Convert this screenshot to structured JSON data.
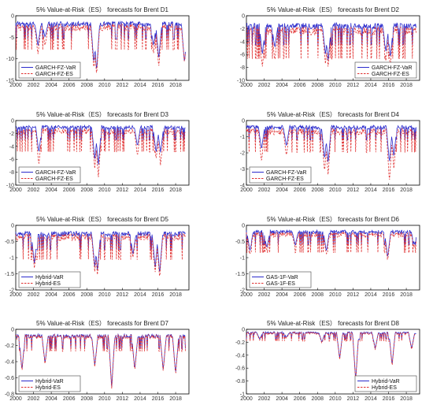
{
  "figure": {
    "panel_titles_note": "",
    "colors": {
      "var": "#2b2bcc",
      "es": "#e03030",
      "axis": "#000000",
      "tick_text": "#333333"
    }
  },
  "chart_data": [
    {
      "type": "line",
      "title": "5% Value-at-Risk（ES） forecasts for Brent D1",
      "xlabel": "",
      "ylabel": "",
      "xlim": [
        2000,
        2019.5
      ],
      "ylim": [
        -15,
        0
      ],
      "xticks": [
        "2000",
        "2002",
        "2004",
        "2006",
        "2008",
        "2010",
        "2012",
        "2014",
        "2016",
        "2018"
      ],
      "yticks": [
        "0",
        "-5",
        "-10",
        "-15"
      ],
      "legend_position": "bottom-left",
      "series": [
        {
          "name": "GARCH-FZ-VaR",
          "style": "solid",
          "base": -1.8,
          "spikes": [
            [
              2002.5,
              -7
            ],
            [
              2003.3,
              -5
            ],
            [
              2008.8,
              -11
            ],
            [
              2009.1,
              -13
            ],
            [
              2015.5,
              -7
            ],
            [
              2016.1,
              -10
            ],
            [
              2019.0,
              -11
            ]
          ]
        },
        {
          "name": "GARCH-FZ-ES",
          "style": "dashed",
          "base": -2.6,
          "spikes": [
            [
              2002.5,
              -9
            ],
            [
              2003.3,
              -7
            ],
            [
              2008.8,
              -12.5
            ],
            [
              2009.1,
              -14
            ],
            [
              2015.5,
              -9
            ],
            [
              2016.1,
              -12
            ],
            [
              2019.0,
              -11
            ]
          ]
        }
      ]
    },
    {
      "type": "line",
      "title": "5% Value-at-Risk（ES） forecasts for Brent D2",
      "xlabel": "",
      "ylabel": "",
      "xlim": [
        2000,
        2019.5
      ],
      "ylim": [
        -10,
        0
      ],
      "xticks": [
        "2000",
        "2002",
        "2004",
        "2006",
        "2008",
        "2010",
        "2012",
        "2014",
        "2016",
        "2018"
      ],
      "yticks": [
        "0",
        "-2",
        "-4",
        "-6",
        "-8",
        "-10"
      ],
      "legend_position": "bottom-right",
      "series": [
        {
          "name": "GARCH-FZ-VaR",
          "style": "solid",
          "base": -1.5,
          "spikes": [
            [
              2001.8,
              -6
            ],
            [
              2003.2,
              -5
            ],
            [
              2008.9,
              -6
            ],
            [
              2009.2,
              -7
            ],
            [
              2015.7,
              -5.5
            ],
            [
              2016.2,
              -6.5
            ]
          ]
        },
        {
          "name": "GARCH-FZ-ES",
          "style": "dashed",
          "base": -2.2,
          "spikes": [
            [
              2001.8,
              -8
            ],
            [
              2003.2,
              -7
            ],
            [
              2008.9,
              -7.5
            ],
            [
              2009.2,
              -8
            ],
            [
              2015.7,
              -7
            ],
            [
              2016.2,
              -8
            ]
          ]
        }
      ]
    },
    {
      "type": "line",
      "title": "5% Value-at-Risk（ES） forecasts for Brent D3",
      "xlabel": "",
      "ylabel": "",
      "xlim": [
        2000,
        2019.5
      ],
      "ylim": [
        -10,
        0
      ],
      "xticks": [
        "2000",
        "2002",
        "2004",
        "2006",
        "2008",
        "2010",
        "2012",
        "2014",
        "2016",
        "2018"
      ],
      "yticks": [
        "0",
        "-2",
        "-4",
        "-6",
        "-8",
        "-10"
      ],
      "legend_position": "bottom-left",
      "series": [
        {
          "name": "GARCH-FZ-VaR",
          "style": "solid",
          "base": -1.0,
          "spikes": [
            [
              2002.6,
              -5
            ],
            [
              2008.9,
              -6
            ],
            [
              2009.3,
              -7
            ],
            [
              2013.7,
              -4
            ],
            [
              2015.8,
              -5
            ],
            [
              2016.3,
              -5
            ]
          ]
        },
        {
          "name": "GARCH-FZ-ES",
          "style": "dashed",
          "base": -1.6,
          "spikes": [
            [
              2002.6,
              -7
            ],
            [
              2008.9,
              -7.5
            ],
            [
              2009.3,
              -9
            ],
            [
              2013.7,
              -5.5
            ],
            [
              2015.8,
              -6
            ],
            [
              2016.3,
              -7
            ]
          ]
        }
      ]
    },
    {
      "type": "line",
      "title": "5% Value-at-Risk（ES） forecasts for Brent D4",
      "xlabel": "",
      "ylabel": "",
      "xlim": [
        2000,
        2019.5
      ],
      "ylim": [
        -4,
        0
      ],
      "xticks": [
        "2000",
        "2002",
        "2004",
        "2006",
        "2008",
        "2010",
        "2012",
        "2014",
        "2016",
        "2018"
      ],
      "yticks": [
        "0",
        "-1",
        "-2",
        "-3",
        "-4"
      ],
      "legend_position": "bottom-left",
      "series": [
        {
          "name": "GARCH-FZ-VaR",
          "style": "solid",
          "base": -0.4,
          "spikes": [
            [
              2001.7,
              -1.8
            ],
            [
              2004.5,
              -1.6
            ],
            [
              2008.8,
              -2.4
            ],
            [
              2009.2,
              -2.6
            ],
            [
              2016.1,
              -2.6
            ],
            [
              2016.6,
              -2.2
            ]
          ]
        },
        {
          "name": "GARCH-FZ-ES",
          "style": "dashed",
          "base": -0.65,
          "spikes": [
            [
              2001.7,
              -2.6
            ],
            [
              2004.5,
              -2.2
            ],
            [
              2008.8,
              -3.2
            ],
            [
              2009.2,
              -3.4
            ],
            [
              2016.1,
              -3.8
            ],
            [
              2016.6,
              -3.0
            ]
          ]
        }
      ]
    },
    {
      "type": "line",
      "title": "5% Value-at-Risk（ES） forecasts for Brent D5",
      "xlabel": "",
      "ylabel": "",
      "xlim": [
        2000,
        2019.5
      ],
      "ylim": [
        -2,
        0
      ],
      "xticks": [
        "2000",
        "2002",
        "2004",
        "2006",
        "2008",
        "2010",
        "2012",
        "2014",
        "2016",
        "2018"
      ],
      "yticks": [
        "0",
        "-0.5",
        "-1",
        "-1.5",
        "-2"
      ],
      "legend_position": "bottom-left",
      "series": [
        {
          "name": "Hybrid-VaR",
          "style": "solid",
          "base": -0.25,
          "spikes": [
            [
              2002.1,
              -1.2
            ],
            [
              2008.9,
              -1.3
            ],
            [
              2009.2,
              -1.4
            ],
            [
              2013.2,
              -0.9
            ],
            [
              2015.7,
              -1.3
            ],
            [
              2016.2,
              -1.5
            ]
          ]
        },
        {
          "name": "Hybrid-ES",
          "style": "dashed",
          "base": -0.35,
          "spikes": [
            [
              2002.1,
              -1.35
            ],
            [
              2008.9,
              -1.45
            ],
            [
              2009.2,
              -1.55
            ],
            [
              2013.2,
              -1.0
            ],
            [
              2015.7,
              -1.45
            ],
            [
              2016.2,
              -1.65
            ]
          ]
        }
      ]
    },
    {
      "type": "line",
      "title": "5% Value-at-Risk（ES） forecasts for Brent D6",
      "xlabel": "",
      "ylabel": "",
      "xlim": [
        2000,
        2019.5
      ],
      "ylim": [
        -2,
        0
      ],
      "xticks": [
        "2000",
        "2002",
        "2004",
        "2006",
        "2008",
        "2010",
        "2012",
        "2014",
        "2016",
        "2018"
      ],
      "yticks": [
        "0",
        "-0.5",
        "-1",
        "-1.5",
        "-2"
      ],
      "legend_position": "bottom-left",
      "series": [
        {
          "name": "GAS-1F-VaR",
          "style": "solid",
          "base": -0.2,
          "spikes": [
            [
              2000.4,
              -0.8
            ],
            [
              2002.3,
              -0.7
            ],
            [
              2005.5,
              -0.6
            ],
            [
              2009.0,
              -0.8
            ],
            [
              2015.9,
              -1.0
            ],
            [
              2018.9,
              -0.6
            ]
          ]
        },
        {
          "name": "GAS-1F-ES",
          "style": "dashed",
          "base": -0.28,
          "spikes": [
            [
              2000.4,
              -0.9
            ],
            [
              2002.3,
              -0.8
            ],
            [
              2005.5,
              -0.7
            ],
            [
              2009.0,
              -0.9
            ],
            [
              2015.9,
              -1.1
            ],
            [
              2018.9,
              -0.7
            ]
          ]
        }
      ]
    },
    {
      "type": "line",
      "title": "5% Value-at-Risk（ES） forecasts for Brent D7",
      "xlabel": "",
      "ylabel": "",
      "xlim": [
        2000,
        2019.5
      ],
      "ylim": [
        -0.8,
        0
      ],
      "xticks": [
        "2000",
        "2002",
        "2004",
        "2006",
        "2008",
        "2010",
        "2012",
        "2014",
        "2016",
        "2018"
      ],
      "yticks": [
        "0",
        "-0.2",
        "-0.4",
        "-0.6",
        "-0.8"
      ],
      "legend_position": "bottom-left",
      "series": [
        {
          "name": "Hybrid-VaR",
          "style": "solid",
          "base": -0.08,
          "spikes": [
            [
              2000.7,
              -0.5
            ],
            [
              2003.3,
              -0.42
            ],
            [
              2008.9,
              -0.45
            ],
            [
              2010.8,
              -0.72
            ],
            [
              2013.4,
              -0.5
            ],
            [
              2016.6,
              -0.5
            ],
            [
              2018.0,
              -0.55
            ]
          ]
        },
        {
          "name": "Hybrid-ES",
          "style": "dashed",
          "base": -0.09,
          "spikes": [
            [
              2000.7,
              -0.52
            ],
            [
              2003.3,
              -0.44
            ],
            [
              2008.9,
              -0.47
            ],
            [
              2010.8,
              -0.74
            ],
            [
              2013.4,
              -0.52
            ],
            [
              2016.6,
              -0.52
            ],
            [
              2018.0,
              -0.57
            ]
          ]
        }
      ]
    },
    {
      "type": "line",
      "title": "5% Value-at-Risk（ES） forecasts for Brent D8",
      "xlabel": "",
      "ylabel": "",
      "xlim": [
        2000,
        2019.5
      ],
      "ylim": [
        -1,
        0
      ],
      "xticks": [
        "2000",
        "2002",
        "2004",
        "2006",
        "2008",
        "2010",
        "2012",
        "2014",
        "2016",
        "2018"
      ],
      "yticks": [
        "0",
        "-0.2",
        "-0.4",
        "-0.6",
        "-0.8",
        "-1"
      ],
      "legend_position": "bottom-right",
      "series": [
        {
          "name": "Hybrid-VaR",
          "style": "solid",
          "base": -0.05,
          "spikes": [
            [
              2001.5,
              -0.15
            ],
            [
              2004.5,
              -0.12
            ],
            [
              2008.5,
              -0.2
            ],
            [
              2010.5,
              -0.45
            ],
            [
              2012.3,
              -0.78
            ],
            [
              2014.5,
              -0.3
            ],
            [
              2016.4,
              -0.55
            ],
            [
              2018.6,
              -0.3
            ]
          ]
        },
        {
          "name": "Hybrid-ES",
          "style": "dashed",
          "base": -0.06,
          "spikes": [
            [
              2001.5,
              -0.17
            ],
            [
              2004.5,
              -0.14
            ],
            [
              2008.5,
              -0.22
            ],
            [
              2010.5,
              -0.47
            ],
            [
              2012.3,
              -0.8
            ],
            [
              2014.5,
              -0.32
            ],
            [
              2016.4,
              -0.57
            ],
            [
              2018.6,
              -0.32
            ]
          ]
        }
      ]
    }
  ]
}
